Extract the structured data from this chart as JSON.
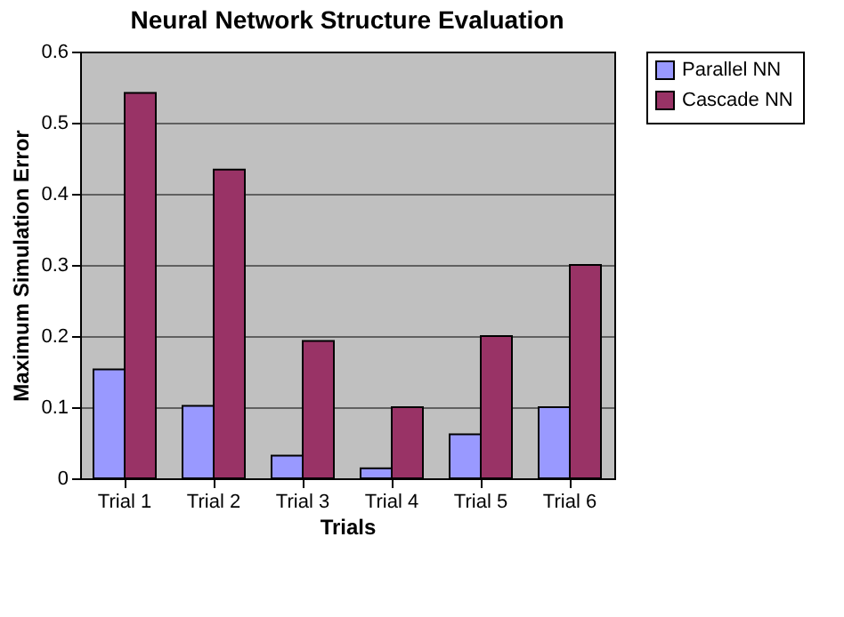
{
  "chart_data": {
    "type": "bar",
    "title": "Neural Network Structure Evaluation",
    "xlabel": "Trials",
    "ylabel": "Maximum Simulation Error",
    "categories": [
      "Trial 1",
      "Trial 2",
      "Trial 3",
      "Trial 4",
      "Trial 5",
      "Trial 6"
    ],
    "series": [
      {
        "name": "Parallel NN",
        "color": "#9999ff",
        "values": [
          0.153,
          0.102,
          0.032,
          0.014,
          0.062,
          0.1
        ]
      },
      {
        "name": "Cascade NN",
        "color": "#993366",
        "values": [
          0.542,
          0.434,
          0.193,
          0.1,
          0.2,
          0.3
        ]
      }
    ],
    "ylim": [
      0,
      0.6
    ],
    "yticks": [
      0,
      0.1,
      0.2,
      0.3,
      0.4,
      0.5,
      0.6
    ],
    "grid": "y",
    "legend": "right"
  }
}
